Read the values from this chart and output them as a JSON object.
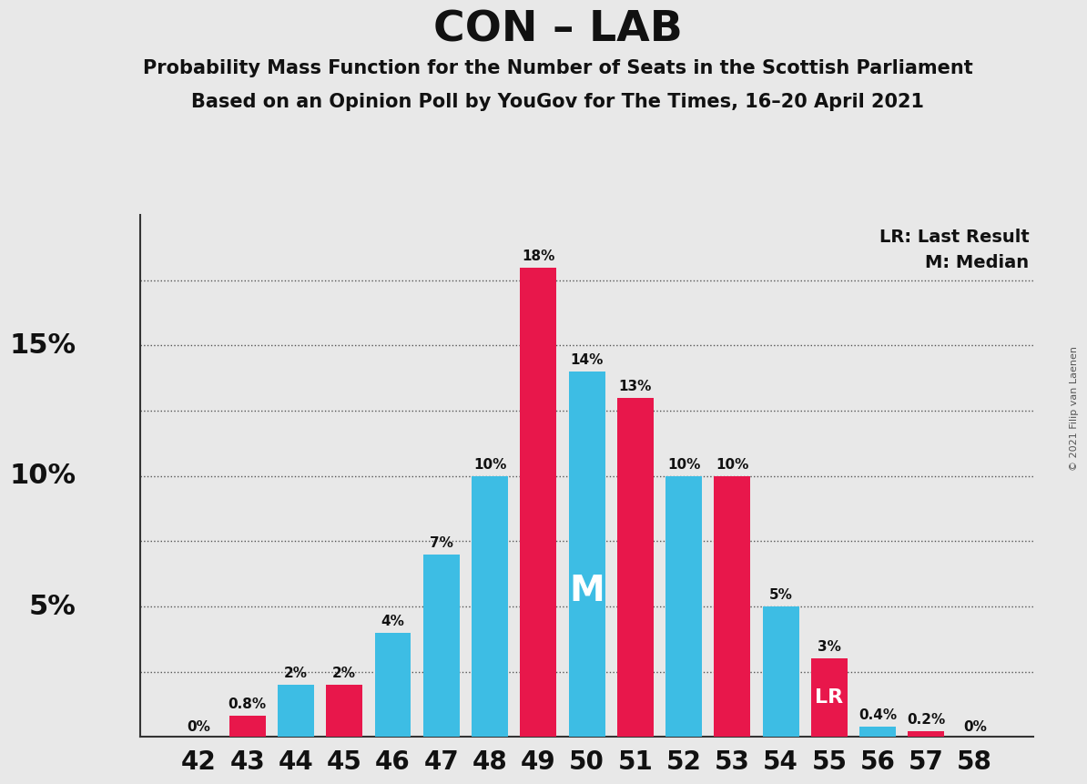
{
  "title": "CON – LAB",
  "subtitle1": "Probability Mass Function for the Number of Seats in the Scottish Parliament",
  "subtitle2": "Based on an Opinion Poll by YouGov for The Times, 16–20 April 2021",
  "copyright": "© 2021 Filip van Laenen",
  "seats": [
    42,
    43,
    44,
    45,
    46,
    47,
    48,
    49,
    50,
    51,
    52,
    53,
    54,
    55,
    56,
    57,
    58
  ],
  "values": [
    0.0,
    0.8,
    2.0,
    2.0,
    4.0,
    7.0,
    10.0,
    18.0,
    14.0,
    13.0,
    10.0,
    10.0,
    5.0,
    3.0,
    0.4,
    0.2,
    0.0
  ],
  "colors": [
    "#3dbde4",
    "#e8174b",
    "#3dbde4",
    "#e8174b",
    "#3dbde4",
    "#3dbde4",
    "#3dbde4",
    "#e8174b",
    "#3dbde4",
    "#e8174b",
    "#3dbde4",
    "#e8174b",
    "#3dbde4",
    "#e8174b",
    "#3dbde4",
    "#e8174b",
    "#e8174b"
  ],
  "labels": [
    "0%",
    "0.8%",
    "2%",
    "2%",
    "4%",
    "7%",
    "10%",
    "18%",
    "14%",
    "13%",
    "10%",
    "10%",
    "5%",
    "3%",
    "0.4%",
    "0.2%",
    "0%"
  ],
  "median_seat": 50,
  "lr_seat": 55,
  "blue_color": "#3dbde4",
  "red_color": "#e8174b",
  "background_color": "#e8e8e8",
  "ylim": [
    0,
    20.0
  ],
  "ytick_positions": [
    5,
    10,
    15
  ],
  "ytick_labels": [
    "5%",
    "10%",
    "15%"
  ],
  "grid_positions": [
    2.5,
    5.0,
    7.5,
    10.0,
    12.5,
    15.0,
    17.5
  ],
  "bar_width": 0.75
}
